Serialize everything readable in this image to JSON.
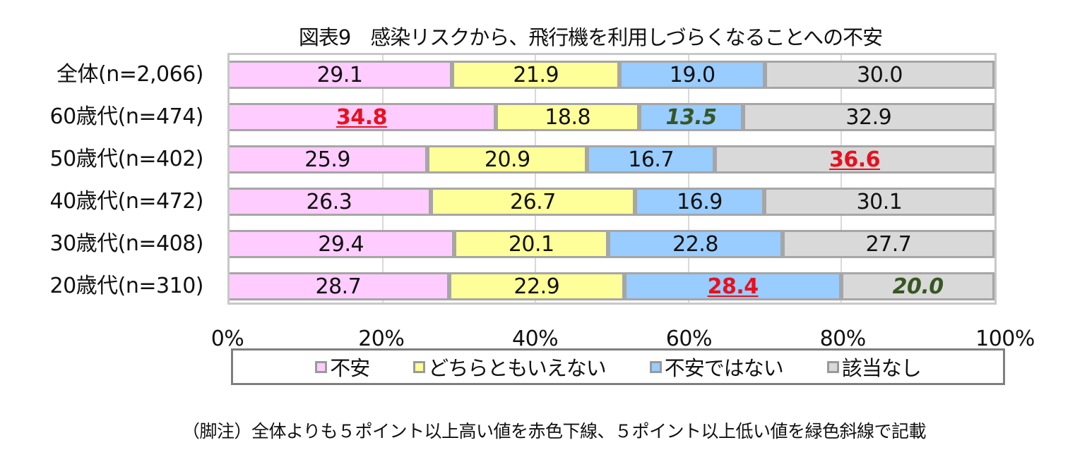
{
  "title": "図表9　感染リスクから、飛行機を利用しづらくなることへの不安",
  "colors": {
    "不安": "#ffccff",
    "どちらともいえない": "#ffff99",
    "不安ではない": "#99ccff",
    "該当なし": "#d9d9d9",
    "highlight_high": "#e8101e",
    "highlight_low": "#375623"
  },
  "rows": [
    {
      "label": "全体(n=2,066)",
      "values": [
        29.1,
        21.9,
        19.0,
        30.0
      ],
      "labels": [
        "29.1",
        "21.9",
        "19.0",
        "30.0"
      ],
      "marks": [
        "",
        "",
        "",
        ""
      ]
    },
    {
      "label": "60歳代(n=474)",
      "values": [
        34.8,
        18.8,
        13.5,
        32.9
      ],
      "labels": [
        "34.8",
        "18.8",
        "13.5",
        "32.9"
      ],
      "marks": [
        "hi",
        "",
        "lo",
        ""
      ]
    },
    {
      "label": "50歳代(n=402)",
      "values": [
        25.9,
        20.9,
        16.7,
        36.6
      ],
      "labels": [
        "25.9",
        "20.9",
        "16.7",
        "36.6"
      ],
      "marks": [
        "",
        "",
        "",
        "hi"
      ]
    },
    {
      "label": "40歳代(n=472)",
      "values": [
        26.3,
        26.7,
        16.9,
        30.1
      ],
      "labels": [
        "26.3",
        "26.7",
        "16.9",
        "30.1"
      ],
      "marks": [
        "",
        "",
        "",
        ""
      ]
    },
    {
      "label": "30歳代(n=408)",
      "values": [
        29.4,
        20.1,
        22.8,
        27.7
      ],
      "labels": [
        "29.4",
        "20.1",
        "22.8",
        "27.7"
      ],
      "marks": [
        "",
        "",
        "",
        ""
      ]
    },
    {
      "label": "20歳代(n=310)",
      "values": [
        28.7,
        22.9,
        28.4,
        20.0
      ],
      "labels": [
        "28.7",
        "22.9",
        "28.4",
        "20.0"
      ],
      "marks": [
        "",
        "",
        "hi",
        "lo"
      ]
    }
  ],
  "x_ticks": [
    "0%",
    "20%",
    "40%",
    "60%",
    "80%",
    "100%"
  ],
  "legend": [
    {
      "label": "不安",
      "color": "#ffccff"
    },
    {
      "label": "どちらともいえない",
      "color": "#ffff99"
    },
    {
      "label": "不安ではない",
      "color": "#99ccff"
    },
    {
      "label": "該当なし",
      "color": "#d9d9d9"
    }
  ],
  "footnote": "（脚注）全体よりも５ポイント以上高い値を赤色下線、５ポイント以上低い値を緑色斜線で記載",
  "chart_data": {
    "type": "bar",
    "orientation": "horizontal",
    "stacked": "percent",
    "title": "図表9　感染リスクから、飛行機を利用しづらくなることへの不安",
    "categories": [
      "全体(n=2,066)",
      "60歳代(n=474)",
      "50歳代(n=402)",
      "40歳代(n=472)",
      "30歳代(n=408)",
      "20歳代(n=310)"
    ],
    "series": [
      {
        "name": "不安",
        "values": [
          29.1,
          34.8,
          25.9,
          26.3,
          29.4,
          28.7
        ]
      },
      {
        "name": "どちらともいえない",
        "values": [
          21.9,
          18.8,
          20.9,
          26.7,
          20.1,
          22.9
        ]
      },
      {
        "name": "不安ではない",
        "values": [
          19.0,
          13.5,
          16.7,
          16.9,
          22.8,
          28.4
        ]
      },
      {
        "name": "該当なし",
        "values": [
          30.0,
          32.9,
          36.6,
          30.1,
          27.7,
          20.0
        ]
      }
    ],
    "xlabel": "",
    "ylabel": "",
    "xlim": [
      0,
      100
    ],
    "x_ticks": [
      "0%",
      "20%",
      "40%",
      "60%",
      "80%",
      "100%"
    ],
    "grid": "vertical",
    "legend_position": "bottom",
    "annotations": {
      "red_underline_bold": [
        [
          "60歳代(n=474)",
          "不安",
          34.8
        ],
        [
          "50歳代(n=402)",
          "該当なし",
          36.6
        ],
        [
          "20歳代(n=310)",
          "不安ではない",
          28.4
        ]
      ],
      "green_italic_bold": [
        [
          "60歳代(n=474)",
          "不安ではない",
          13.5
        ],
        [
          "20歳代(n=310)",
          "該当なし",
          20.0
        ]
      ]
    },
    "footnote": "（脚注）全体よりも５ポイント以上高い値を赤色下線、５ポイント以上低い値を緑色斜線で記載"
  }
}
